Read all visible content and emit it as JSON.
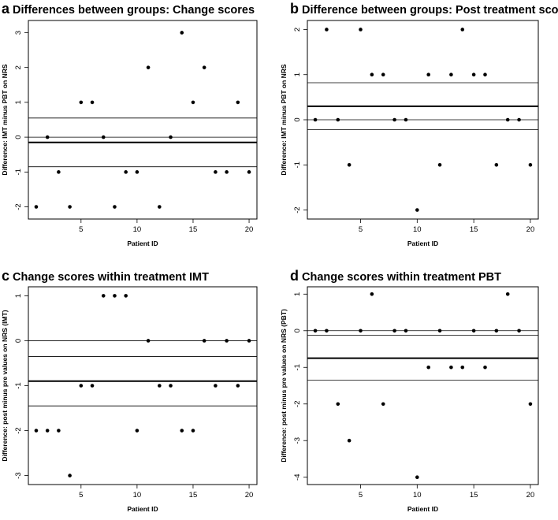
{
  "chart_data": [
    {
      "type": "scatter",
      "panel_letter": "a",
      "title": "Differences between groups: Change scores",
      "xlabel": "Patient ID",
      "ylabel": "Difference: IMT minus PBT on NRS",
      "xlim": [
        0.3,
        20.7
      ],
      "ylim": [
        -2.35,
        3.35
      ],
      "xticks": [
        5,
        10,
        15,
        20
      ],
      "xtick_labels": [
        "5",
        "10",
        "15",
        "20"
      ],
      "yticks": [
        -2,
        -1,
        0,
        1,
        2,
        3
      ],
      "ytick_labels": [
        "-2",
        "-1",
        "0",
        "1",
        "2",
        "3"
      ],
      "x": [
        1,
        2,
        3,
        4,
        5,
        6,
        7,
        8,
        9,
        10,
        11,
        12,
        13,
        14,
        15,
        16,
        17,
        18,
        19,
        20
      ],
      "y": [
        -2,
        0,
        -1,
        -2,
        1,
        1,
        0,
        -2,
        -1,
        -1,
        2,
        -2,
        0,
        3,
        1,
        2,
        -1,
        -1,
        1,
        -1
      ],
      "mean_line": -0.15,
      "limit_lines": [
        -0.85,
        0.55
      ],
      "zero_line": 0
    },
    {
      "type": "scatter",
      "panel_letter": "b",
      "title": "Difference between groups: Post treatment scores",
      "xlabel": "Patient ID",
      "ylabel": "Difference: IMT minus PBT on NRS",
      "xlim": [
        0.3,
        20.7
      ],
      "ylim": [
        -2.2,
        2.2
      ],
      "xticks": [
        5,
        10,
        15,
        20
      ],
      "xtick_labels": [
        "5",
        "10",
        "15",
        "20"
      ],
      "yticks": [
        -2,
        -1,
        0,
        1,
        2
      ],
      "ytick_labels": [
        "-2",
        "-1",
        "0",
        "1",
        "2"
      ],
      "x": [
        1,
        2,
        3,
        4,
        5,
        6,
        7,
        8,
        9,
        10,
        11,
        12,
        13,
        14,
        15,
        16,
        17,
        18,
        19,
        20
      ],
      "y": [
        0,
        2,
        0,
        -1,
        2,
        1,
        1,
        0,
        0,
        -2,
        1,
        -1,
        1,
        2,
        1,
        1,
        -1,
        0,
        0,
        -1
      ],
      "mean_line": 0.3,
      "limit_lines": [
        -0.22,
        0.82
      ],
      "zero_line": 0
    },
    {
      "type": "scatter",
      "panel_letter": "c",
      "title": "Change scores within treatment IMT",
      "xlabel": "Patient ID",
      "ylabel": "Difference: post minus pre values on NRS (IMT)",
      "xlim": [
        0.3,
        20.7
      ],
      "ylim": [
        -3.2,
        1.2
      ],
      "xticks": [
        5,
        10,
        15,
        20
      ],
      "xtick_labels": [
        "5",
        "10",
        "15",
        "20"
      ],
      "yticks": [
        -3,
        -2,
        -1,
        0,
        1
      ],
      "ytick_labels": [
        "-3",
        "-2",
        "-1",
        "0",
        "1"
      ],
      "x": [
        1,
        2,
        3,
        4,
        5,
        6,
        7,
        8,
        9,
        10,
        11,
        12,
        13,
        14,
        15,
        16,
        17,
        18,
        19,
        20
      ],
      "y": [
        -2,
        -2,
        -2,
        -3,
        -1,
        -1,
        1,
        1,
        1,
        -2,
        0,
        -1,
        -1,
        -2,
        -2,
        0,
        -1,
        0,
        -1,
        0
      ],
      "mean_line": -0.9,
      "limit_lines": [
        -1.45,
        -0.35
      ],
      "zero_line": 0
    },
    {
      "type": "scatter",
      "panel_letter": "d",
      "title": "Change scores within treatment PBT",
      "xlabel": "Patient ID",
      "ylabel": "Difference: post minus pre values on NRS (PBT)",
      "xlim": [
        0.3,
        20.7
      ],
      "ylim": [
        -4.2,
        1.2
      ],
      "xticks": [
        5,
        10,
        15,
        20
      ],
      "xtick_labels": [
        "5",
        "10",
        "15",
        "20"
      ],
      "yticks": [
        -4,
        -3,
        -2,
        -1,
        0,
        1
      ],
      "ytick_labels": [
        "-4",
        "-3",
        "-2",
        "-1",
        "0",
        "1"
      ],
      "x": [
        1,
        2,
        3,
        4,
        5,
        6,
        7,
        8,
        9,
        10,
        11,
        12,
        13,
        14,
        15,
        16,
        17,
        18,
        19,
        20
      ],
      "y": [
        0,
        0,
        -2,
        -3,
        0,
        1,
        -2,
        0,
        0,
        -4,
        -1,
        0,
        -1,
        -1,
        0,
        -1,
        0,
        1,
        0,
        -2
      ],
      "mean_line": -0.75,
      "limit_lines": [
        -1.35,
        -0.12
      ],
      "zero_line": 0
    }
  ]
}
